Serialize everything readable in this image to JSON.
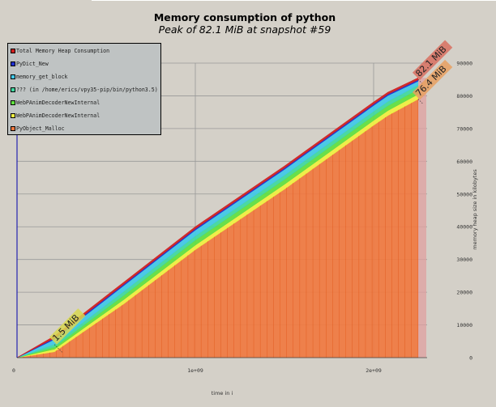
{
  "title": "Memory consumption of python",
  "subtitle": "Peak of 82.1 MiB at snapshot #59",
  "chart_data": {
    "type": "area",
    "stacked": true,
    "xlabel": "time in i",
    "ylabel": "memory heap size in kilobytes",
    "xlim": [
      0,
      2300000000
    ],
    "ylim": [
      0,
      90000
    ],
    "x_ticks": [
      0,
      1000000000,
      2000000000
    ],
    "x_tick_labels": [
      "0",
      "1e+09",
      "2e+09"
    ],
    "y_ticks": [
      0,
      10000,
      20000,
      30000,
      40000,
      50000,
      60000,
      70000,
      80000,
      90000
    ],
    "y_tick_labels": [
      "0",
      "10000",
      "20000",
      "30000",
      "40000",
      "50000",
      "60000",
      "70000",
      "80000",
      "90000"
    ],
    "grid": true,
    "legend_position": "top-left",
    "x": [
      0,
      210000000,
      600000000,
      1000000000,
      1500000000,
      2000000000,
      2080000000,
      2250000000
    ],
    "series": [
      {
        "name": "PyObject_Malloc",
        "color": "#f07840",
        "values": [
          0,
          1800,
          16500,
          33000,
          51500,
          71000,
          74000,
          79000
        ]
      },
      {
        "name": "WebPAnimDecoderNewInternal",
        "color": "#f0f040",
        "values": [
          0,
          800,
          1300,
          1400,
          1450,
          1500,
          1500,
          1500
        ]
      },
      {
        "name": "WebPAnimDecoderNewInternal",
        "color": "#60e040",
        "values": [
          0,
          700,
          1300,
          1500,
          1500,
          1500,
          1500,
          1500
        ]
      },
      {
        "name": "??? (in /home/erics/vpy35-pip/bin/python3.5)",
        "color": "#40d8a0",
        "values": [
          0,
          800,
          1200,
          1300,
          1300,
          1300,
          1300,
          1300
        ]
      },
      {
        "name": "memory_get_block",
        "color": "#40c8e8",
        "values": [
          0,
          1500,
          1800,
          1800,
          1800,
          1800,
          1800,
          1200
        ]
      },
      {
        "name": "PyDict_New",
        "color": "#2030d0",
        "values": [
          0,
          400,
          400,
          400,
          400,
          400,
          400,
          400
        ]
      },
      {
        "name": "Total Memory Heap Consumption",
        "color": "#d02020",
        "values": [
          0,
          600,
          600,
          600,
          600,
          600,
          600,
          600
        ]
      }
    ],
    "annotations": [
      {
        "text": "1.5 MiB",
        "x": 210000000,
        "y": 4000,
        "color": "#d8d850"
      },
      {
        "text": "82.1 MiB",
        "x": 2250000000,
        "y": 85000,
        "color": "#d87060"
      },
      {
        "text": "76.4 MiB",
        "x": 2250000000,
        "y": 79000,
        "color": "#e8a060"
      }
    ]
  }
}
